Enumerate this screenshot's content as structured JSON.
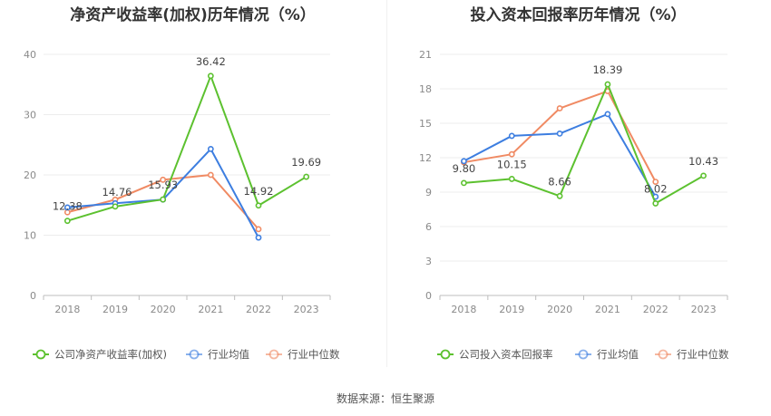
{
  "colors": {
    "company": "#5cc12f",
    "average": "#3d7ee0",
    "median": "#f08a63"
  },
  "chart_data": [
    {
      "type": "line",
      "title": "净资产收益率(加权)历年情况（%）",
      "categories": [
        "2018",
        "2019",
        "2020",
        "2021",
        "2022",
        "2023"
      ],
      "ylim": [
        0,
        40
      ],
      "yticks": [
        0,
        10,
        20,
        30,
        40
      ],
      "ytick_labels": [
        "0",
        "10",
        "20",
        "30",
        "40"
      ],
      "series": [
        {
          "name": "公司净资产收益率(加权)",
          "values": [
            12.38,
            14.76,
            15.93,
            36.42,
            14.92,
            19.69
          ]
        },
        {
          "name": "行业均值",
          "values": [
            14.6,
            15.3,
            15.9,
            24.3,
            9.6,
            null
          ]
        },
        {
          "name": "行业中位数",
          "values": [
            13.8,
            15.9,
            19.2,
            20.0,
            11.0,
            null
          ]
        }
      ],
      "labels": [
        "12.38",
        "14.76",
        "15.93",
        "36.42",
        "14.92",
        "19.69"
      ]
    },
    {
      "type": "line",
      "title": "投入资本回报率历年情况（%）",
      "categories": [
        "2018",
        "2019",
        "2020",
        "2021",
        "2022",
        "2023"
      ],
      "ylim": [
        0,
        21
      ],
      "yticks": [
        0,
        3,
        6,
        9,
        12,
        15,
        18,
        21
      ],
      "ytick_labels": [
        "0",
        "3",
        "6",
        "9",
        "12",
        "15",
        "18",
        "21"
      ],
      "series": [
        {
          "name": "公司投入资本回报率",
          "values": [
            9.8,
            10.15,
            8.66,
            18.39,
            8.02,
            10.43
          ]
        },
        {
          "name": "行业均值",
          "values": [
            11.7,
            13.9,
            14.1,
            15.8,
            8.6,
            null
          ]
        },
        {
          "name": "行业中位数",
          "values": [
            11.6,
            12.3,
            16.3,
            17.8,
            9.9,
            null
          ]
        }
      ],
      "labels": [
        "9.80",
        "10.15",
        "8.66",
        "18.39",
        "8.02",
        "10.43"
      ]
    }
  ],
  "footer": {
    "source": "数据来源：恒生聚源"
  }
}
